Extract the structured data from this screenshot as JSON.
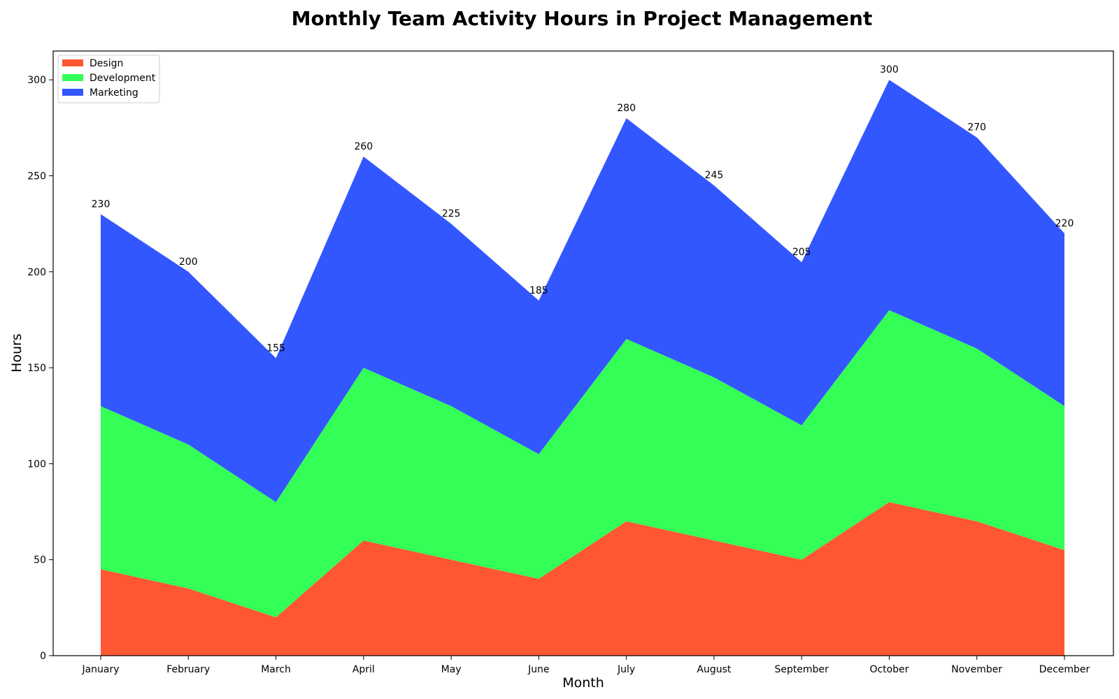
{
  "chart_data": {
    "type": "area",
    "stacked": true,
    "title": "Monthly Team Activity Hours in Project Management",
    "xlabel": "Month",
    "ylabel": "Hours",
    "categories": [
      "January",
      "February",
      "March",
      "April",
      "May",
      "June",
      "July",
      "August",
      "September",
      "October",
      "November",
      "December"
    ],
    "series": [
      {
        "name": "Design",
        "color": "#ff5733",
        "values": [
          45,
          35,
          20,
          60,
          50,
          40,
          70,
          60,
          50,
          80,
          70,
          55
        ]
      },
      {
        "name": "Development",
        "color": "#33ff57",
        "values": [
          85,
          75,
          60,
          90,
          80,
          65,
          95,
          85,
          70,
          100,
          90,
          75
        ]
      },
      {
        "name": "Marketing",
        "color": "#3357ff",
        "values": [
          100,
          90,
          75,
          110,
          95,
          80,
          115,
          100,
          85,
          120,
          110,
          90
        ]
      }
    ],
    "totals": [
      230,
      200,
      155,
      260,
      225,
      185,
      280,
      245,
      205,
      300,
      270,
      220
    ],
    "ylim": [
      0,
      315
    ],
    "yticks": [
      0,
      50,
      100,
      150,
      200,
      250,
      300
    ],
    "grid": false,
    "legend_position": "top-left"
  }
}
